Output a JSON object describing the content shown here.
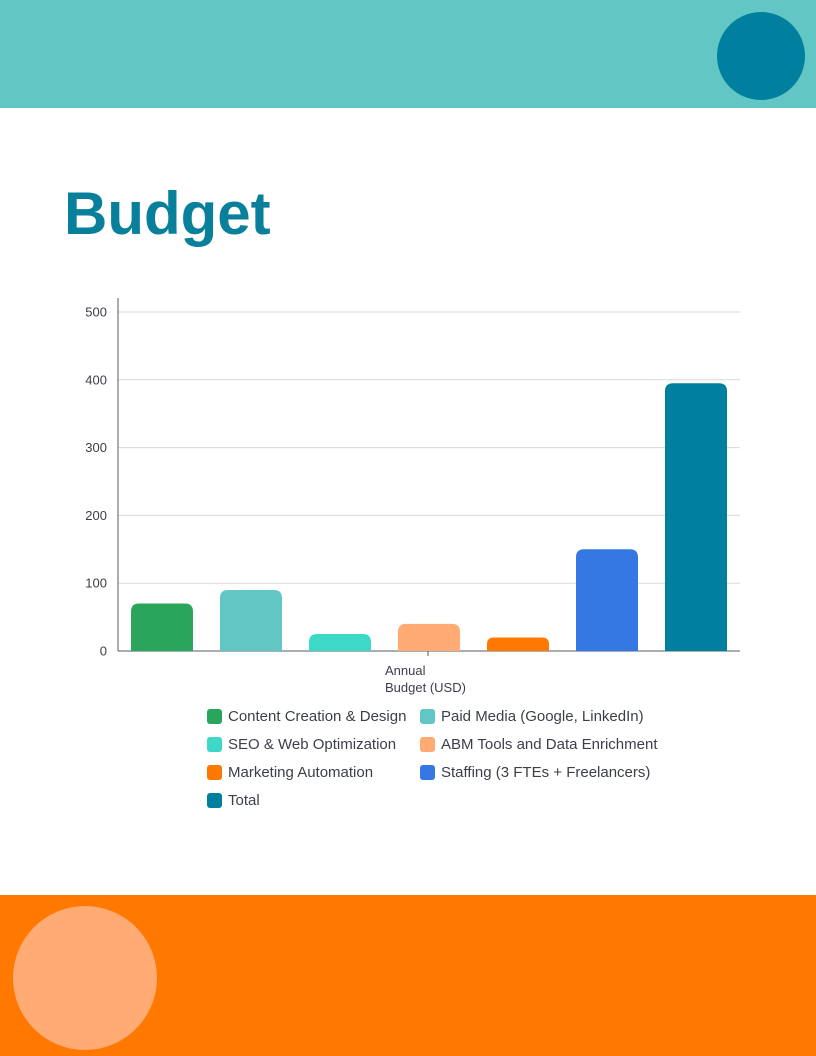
{
  "page": {
    "title": "Budget"
  },
  "colors": {
    "top_band": "#62c6c4",
    "top_circle": "#00809e",
    "bottom_band": "#ff7800",
    "bottom_circle": "#ffab73",
    "title": "#08809c"
  },
  "chart_data": {
    "type": "bar",
    "categories": [
      "Annual Budget (USD)"
    ],
    "category_label_lines": [
      "Annual",
      "Budget (USD)"
    ],
    "ylim": [
      0,
      500
    ],
    "yticks": [
      0,
      100,
      200,
      300,
      400,
      500
    ],
    "grid": true,
    "legend_position": "bottom",
    "series": [
      {
        "name": "Content Creation & Design",
        "color": "#2aa65c",
        "values": [
          70
        ]
      },
      {
        "name": "Paid Media (Google, LinkedIn)",
        "color": "#62c6c4",
        "values": [
          90
        ]
      },
      {
        "name": "SEO & Web Optimization",
        "color": "#3dd9c6",
        "values": [
          25
        ]
      },
      {
        "name": "ABM Tools and Data Enrichment",
        "color": "#ffab73",
        "values": [
          40
        ]
      },
      {
        "name": "Marketing Automation",
        "color": "#ff7800",
        "values": [
          20
        ]
      },
      {
        "name": "Staffing (3 FTEs + Freelancers)",
        "color": "#3678e3",
        "values": [
          150
        ]
      },
      {
        "name": "Total",
        "color": "#00809e",
        "values": [
          395
        ]
      }
    ]
  }
}
